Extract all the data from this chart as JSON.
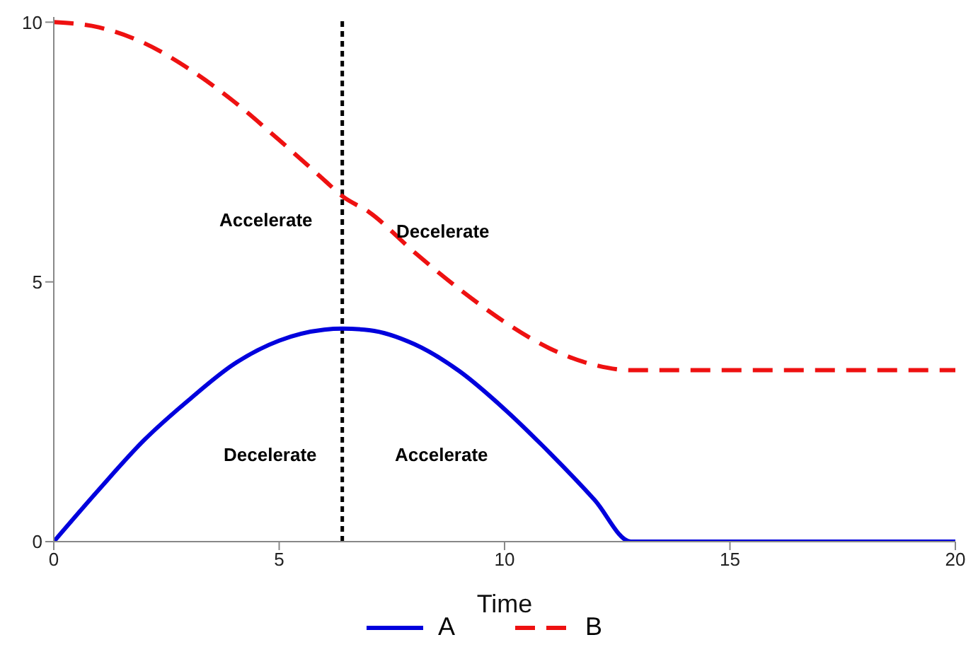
{
  "chart_data": {
    "type": "line",
    "xlabel": "Time",
    "x": [
      0,
      1,
      2,
      3,
      4,
      5,
      6,
      6.4,
      7,
      8,
      9,
      10,
      11,
      12,
      12.8,
      13,
      15,
      20
    ],
    "series": [
      {
        "name": "A",
        "color": "#0000dd",
        "line_style": "solid",
        "values": [
          0,
          1.0,
          1.95,
          2.73,
          3.42,
          3.87,
          4.08,
          4.1,
          4.07,
          3.8,
          3.28,
          2.55,
          1.71,
          0.8,
          0,
          0,
          0,
          0
        ]
      },
      {
        "name": "B",
        "color": "#ee1111",
        "line_style": "dashed",
        "values": [
          10,
          9.9,
          9.6,
          9.1,
          8.47,
          7.73,
          6.96,
          6.65,
          6.34,
          5.57,
          4.86,
          4.23,
          3.72,
          3.4,
          3.3,
          3.3,
          3.3,
          3.3
        ]
      }
    ],
    "xlim": [
      0,
      20
    ],
    "xticks": [
      0,
      5,
      10,
      15,
      20
    ],
    "ylim": [
      0,
      10.1
    ],
    "yticks": [
      0,
      5,
      10
    ],
    "grid": false,
    "legend": "bottom",
    "marker": "none",
    "ref_lines": [
      {
        "axis": "x",
        "value": 6.4,
        "color": "#000000",
        "line_style": "dotted"
      }
    ],
    "annotations": [
      "Accelerate",
      "Decelerate",
      "Decelerate",
      "Accelerate"
    ]
  }
}
